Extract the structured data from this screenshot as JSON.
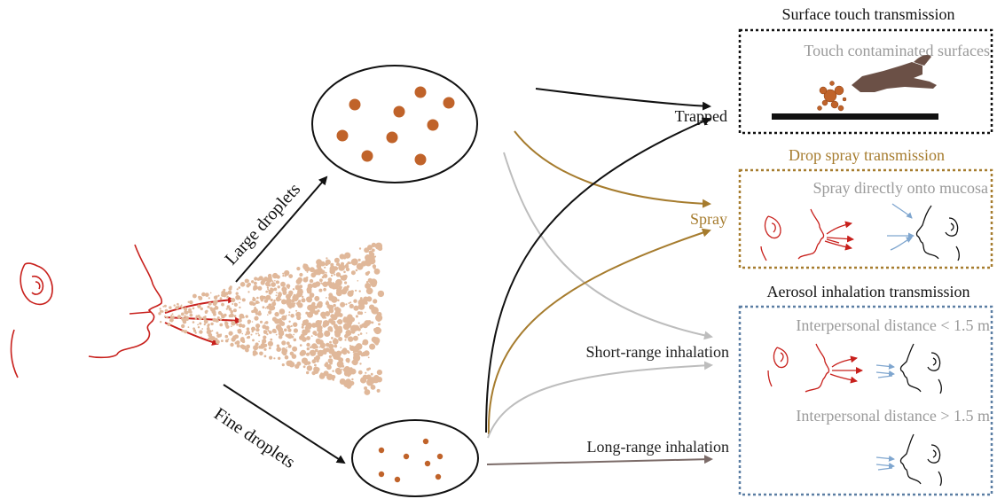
{
  "labels": {
    "large_droplets": "Large droplets",
    "fine_droplets": "Fine droplets",
    "trapped": "Trapped",
    "spray": "Spray",
    "short_range": "Short-range inhalation",
    "long_range": "Long-range inhalation"
  },
  "panels": {
    "surface": {
      "title": "Surface touch transmission",
      "caption": "Touch contaminated surfaces"
    },
    "drop_spray": {
      "title": "Drop spray transmission",
      "caption": "Spray directly onto mucosa"
    },
    "aerosol": {
      "title": "Aerosol inhalation transmission",
      "caption_near": "Interpersonal distance < 1.5 m",
      "caption_far": "Interpersonal distance > 1.5 m"
    }
  },
  "colors": {
    "droplet": "#c0632a",
    "aerosol_cloud": "#e0b89a",
    "face_red": "#c8201c",
    "spray_gold": "#a67c2e",
    "gray_curve": "#bdbdbd",
    "long_range_curve": "#7b6b68",
    "hand": "#6b5046",
    "inhale_blue": "#7fa6cf",
    "surface_border": "#111111",
    "spray_border": "#a67c2e",
    "aerosol_border": "#5b7ea3",
    "caption_gray": "#9a9a9a"
  },
  "icons": {
    "person": "person-profile-icon",
    "hand": "hand-icon"
  }
}
